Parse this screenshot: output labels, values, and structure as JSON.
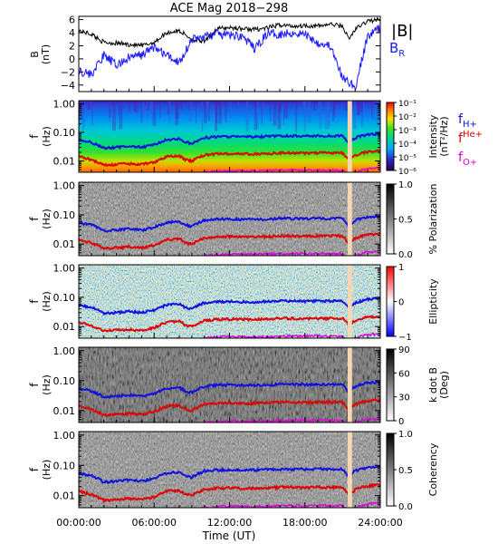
{
  "title": "ACE Mag 2018−298",
  "xlabel": "Time (UT)",
  "x_ticks": [
    "00:00:00",
    "06:00:00",
    "12:00:00",
    "18:00:00",
    "24:00:00"
  ],
  "colors": {
    "bmag": "#000000",
    "br": "#1a1aff",
    "f_h": "#1010e0",
    "f_he": "#e00000",
    "f_o": "#e000e0",
    "gap": "#f5d7b5"
  },
  "top_panel": {
    "ylabel_1": "B",
    "ylabel_2": "(nT)",
    "legend_bmag": "|B|",
    "legend_br": "B",
    "legend_br_sub": "R",
    "y_ticks": [
      "6",
      "4",
      "2",
      "0",
      "−2",
      "−4"
    ]
  },
  "freq_axis": {
    "ylabel_1": "f",
    "ylabel_2": "(Hz)",
    "y_ticks": [
      "1.00",
      "0.10",
      "0.01"
    ]
  },
  "gyro_legend": {
    "h_label": "f",
    "h_sub": "H+",
    "he_label": "f",
    "he_sub": "He+",
    "o_label": "f",
    "o_sub": "O+"
  },
  "panels": [
    {
      "name": "intensity",
      "colorbar_label_1": "Intensity",
      "colorbar_label_2": "(nT²/Hz)",
      "colorbar_ticks": [
        "10⁻¹",
        "10⁻²",
        "10⁻³",
        "10⁻⁴",
        "10⁻⁵",
        "10⁻⁶"
      ]
    },
    {
      "name": "polarization",
      "colorbar_label_1": "% Polarization",
      "colorbar_label_2": "",
      "colorbar_ticks": [
        "1.0",
        "0.5",
        "0.0"
      ]
    },
    {
      "name": "ellipticity",
      "colorbar_label_1": "Ellipticity",
      "colorbar_label_2": "",
      "colorbar_ticks": [
        "1",
        "0",
        "−1"
      ]
    },
    {
      "name": "k-dot-b",
      "colorbar_label_1": "k dot B",
      "colorbar_label_2": "(Deg)",
      "colorbar_ticks": [
        "90",
        "60",
        "30",
        "0"
      ]
    },
    {
      "name": "coherency",
      "colorbar_label_1": "Coherency",
      "colorbar_label_2": "",
      "colorbar_ticks": [
        "1.0",
        "0.5",
        "0.0"
      ]
    }
  ],
  "chart_data": {
    "type": "line",
    "time_axis": {
      "start": "00:00:00",
      "end": "24:00:00",
      "unit": "hours"
    },
    "magnetic_field": {
      "ylim": [
        -5,
        6.5
      ],
      "series": [
        {
          "name": "|B|",
          "x": [
            0,
            1,
            2,
            3,
            4,
            5,
            6,
            7,
            8,
            9,
            10,
            11,
            12,
            13,
            14,
            15,
            16,
            17,
            18,
            19,
            20,
            21,
            21.5,
            22,
            23,
            24
          ],
          "values": [
            4.3,
            3.8,
            2.5,
            2.4,
            2.2,
            2.0,
            2.5,
            4.0,
            4.3,
            3.0,
            2.6,
            4.6,
            4.8,
            4.6,
            4.5,
            4.7,
            5.2,
            5.0,
            5.1,
            5.0,
            5.3,
            5.0,
            3.0,
            4.5,
            5.8,
            6.0
          ]
        },
        {
          "name": "B",
          "x": [
            0,
            1,
            2,
            3,
            4,
            5,
            6,
            7,
            8,
            9,
            10,
            11,
            12,
            13,
            14,
            15,
            16,
            17,
            18,
            19,
            20,
            21,
            21.5,
            22,
            23,
            24
          ],
          "values": [
            -1.8,
            -2.4,
            0.5,
            -1.0,
            0.2,
            0.6,
            1.8,
            0.5,
            -0.5,
            3.0,
            3.4,
            3.8,
            3.6,
            3.5,
            1.5,
            3.9,
            3.8,
            4.0,
            3.8,
            2.5,
            2.0,
            -3.0,
            -3.5,
            -4.5,
            3.5,
            4.8
          ]
        }
      ]
    },
    "gyrofrequencies_hz": {
      "x": [
        0,
        1,
        2,
        3,
        4,
        5,
        6,
        7,
        8,
        8.5,
        9,
        10,
        11,
        12,
        13,
        14,
        15,
        16,
        17,
        18,
        19,
        20,
        21,
        21.5,
        22,
        23,
        24
      ],
      "series": [
        {
          "name": "f",
          "values": [
            0.055,
            0.045,
            0.028,
            0.03,
            0.033,
            0.03,
            0.037,
            0.055,
            0.06,
            0.045,
            0.04,
            0.065,
            0.07,
            0.072,
            0.07,
            0.07,
            0.072,
            0.075,
            0.075,
            0.074,
            0.076,
            0.075,
            0.075,
            0.04,
            0.065,
            0.085,
            0.09
          ]
        },
        {
          "name": "f",
          "values": [
            0.014,
            0.011,
            0.007,
            0.0075,
            0.008,
            0.0075,
            0.009,
            0.014,
            0.015,
            0.011,
            0.01,
            0.016,
            0.0175,
            0.018,
            0.0175,
            0.0175,
            0.018,
            0.019,
            0.019,
            0.0185,
            0.019,
            0.019,
            0.019,
            0.01,
            0.016,
            0.021,
            0.0225
          ]
        },
        {
          "name": "f",
          "values": [
            0.0035,
            0.003,
            0.0018,
            0.0019,
            0.002,
            0.0019,
            0.0023,
            0.0035,
            0.0038,
            0.0028,
            0.0025,
            0.004,
            0.0044,
            0.0045,
            0.0044,
            0.0044,
            0.0045,
            0.0047,
            0.0047,
            0.0046,
            0.0048,
            0.0047,
            0.0047,
            0.0025,
            0.004,
            0.0053,
            0.0056
          ]
        }
      ]
    },
    "data_gap_hours": [
      21.4,
      21.75
    ],
    "freq_range_hz": [
      0.004,
      1.3
    ]
  }
}
